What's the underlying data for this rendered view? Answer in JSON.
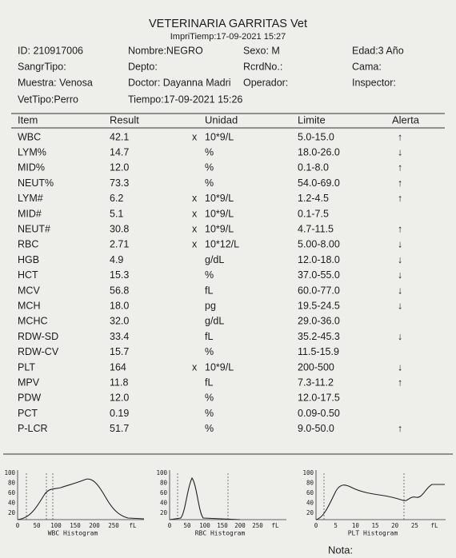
{
  "header": {
    "title": "VETERINARIA GARRITAS  Vet",
    "print_time": "ImpriTiemp:17-09-2021 15:27"
  },
  "info": [
    [
      "ID: 210917006",
      "Nombre:NEGRO",
      "Sexo: M",
      "Edad:3 Año"
    ],
    [
      "SangrTipo:",
      "Depto:",
      "RcrdNo.:",
      "Cama:"
    ],
    [
      "Muestra: Venosa",
      "Doctor: Dayanna Madri",
      "Operador:",
      "Inspector:"
    ],
    [
      "VetTipo:Perro",
      "Tiempo:17-09-2021 15:26"
    ]
  ],
  "table": {
    "columns": [
      "Item",
      "Result",
      "Unidad",
      "Limite",
      "Alerta"
    ],
    "rows": [
      {
        "item": "WBC",
        "result": "42.1",
        "mult": "x",
        "unit": "10*9/L",
        "limit": "5.0-15.0",
        "alert": "↑"
      },
      {
        "item": "LYM%",
        "result": "14.7",
        "unit": "%",
        "limit": "18.0-26.0",
        "alert": "↓"
      },
      {
        "item": "MID%",
        "result": "12.0",
        "unit": "%",
        "limit": "0.1-8.0",
        "alert": "↑"
      },
      {
        "item": "NEUT%",
        "result": "73.3",
        "unit": "%",
        "limit": "54.0-69.0",
        "alert": "↑"
      },
      {
        "item": "LYM#",
        "result": "6.2",
        "mult": "x",
        "unit": "10*9/L",
        "limit": "1.2-4.5",
        "alert": "↑"
      },
      {
        "item": "MID#",
        "result": "5.1",
        "mult": "x",
        "unit": "10*9/L",
        "limit": "0.1-7.5"
      },
      {
        "item": "NEUT#",
        "result": "30.8",
        "mult": "x",
        "unit": "10*9/L",
        "limit": "4.7-11.5",
        "alert": "↑"
      },
      {
        "item": "RBC",
        "result": "2.71",
        "mult": "x",
        "unit": "10*12/L",
        "limit": "5.00-8.00",
        "alert": "↓"
      },
      {
        "item": "HGB",
        "result": "4.9",
        "unit": "g/dL",
        "limit": "12.0-18.0",
        "alert": "↓"
      },
      {
        "item": "HCT",
        "result": "15.3",
        "unit": "%",
        "limit": "37.0-55.0",
        "alert": "↓"
      },
      {
        "item": "MCV",
        "result": "56.8",
        "unit": "fL",
        "limit": "60.0-77.0",
        "alert": "↓"
      },
      {
        "item": "MCH",
        "result": "18.0",
        "unit": "pg",
        "limit": "19.5-24.5",
        "alert": "↓"
      },
      {
        "item": "MCHC",
        "result": "32.0",
        "unit": "g/dL",
        "limit": "29.0-36.0"
      },
      {
        "item": "RDW-SD",
        "result": "33.4",
        "unit": "fL",
        "limit": "35.2-45.3",
        "alert": "↓"
      },
      {
        "item": "RDW-CV",
        "result": "15.7",
        "unit": "%",
        "limit": "11.5-15.9"
      },
      {
        "item": "PLT",
        "result": "164",
        "mult": "x",
        "unit": "10*9/L",
        "limit": "200-500",
        "alert": "↓"
      },
      {
        "item": "MPV",
        "result": "11.8",
        "unit": "fL",
        "limit": "7.3-11.2",
        "alert": "↑"
      },
      {
        "item": "PDW",
        "result": "12.0",
        "unit": "%",
        "limit": "12.0-17.5"
      },
      {
        "item": "PCT",
        "result": "0.19",
        "unit": "%",
        "limit": "0.09-0.50"
      },
      {
        "item": "P-LCR",
        "result": "51.7",
        "unit": "%",
        "limit": "9.0-50.0",
        "alert": "↑"
      }
    ]
  },
  "histograms": [
    {
      "title": "WBC Histogram",
      "unit": "fL",
      "xticks": [
        0,
        50,
        100,
        150,
        200,
        250
      ],
      "yticks": [
        100,
        80,
        60,
        40,
        20
      ]
    },
    {
      "title": "RBC Histogram",
      "unit": "fL",
      "xticks": [
        0,
        50,
        100,
        150,
        200,
        250
      ],
      "yticks": [
        100,
        80,
        60,
        40,
        20
      ]
    },
    {
      "title": "PLT Histogram",
      "unit": "fL",
      "xticks": [
        0,
        5,
        10,
        15,
        20,
        25
      ],
      "yticks": [
        100,
        80,
        60,
        40,
        20
      ]
    }
  ],
  "note": "Nota:"
}
